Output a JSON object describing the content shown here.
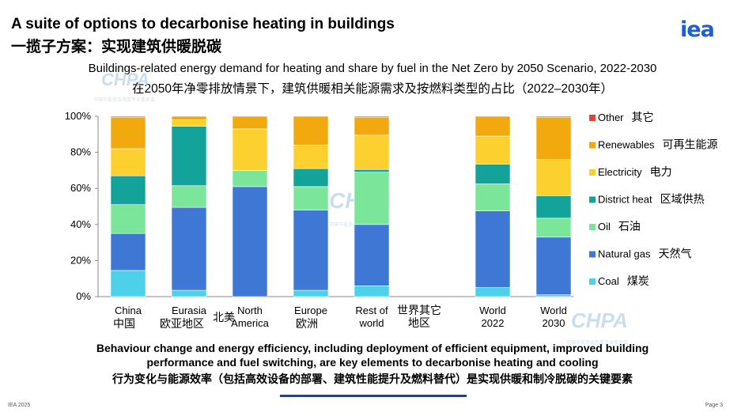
{
  "header": {
    "title_en": "A suite of options to decarbonise heating in buildings",
    "title_zh": "一揽子方案：实现建筑供暖脱碳",
    "logo": "iea"
  },
  "chart_data": {
    "type": "bar",
    "stacked": true,
    "title": "Buildings-related energy demand for heating and share by fuel in the Net Zero by 2050 Scenario, 2022-2030",
    "subtitle": "在2050年净零排放情景下，建筑供暖相关能源需求及按燃料类型的占比（2022–2030年）",
    "categories": [
      {
        "en": "China",
        "zh": "中国"
      },
      {
        "en": "Eurasia",
        "zh": "欧亚地区"
      },
      {
        "en": "North America",
        "zh": "北美"
      },
      {
        "en": "Europe",
        "zh": "欧洲"
      },
      {
        "en": "Rest of world",
        "zh": "世界其它地区"
      },
      {
        "en": "World 2022",
        "zh": ""
      },
      {
        "en": "World 2030",
        "zh": ""
      }
    ],
    "y_ticks": [
      "0%",
      "20%",
      "40%",
      "60%",
      "80%",
      "100%"
    ],
    "ylim": [
      0,
      100
    ],
    "legend_position": "right",
    "series": [
      {
        "name": "Coal",
        "name_zh": "煤炭",
        "color": "#4dd0ea",
        "values": [
          14.5,
          3.5,
          0,
          3.5,
          6,
          5,
          1
        ]
      },
      {
        "name": "Natural gas",
        "name_zh": "天然气",
        "color": "#3f78d4",
        "values": [
          20.5,
          46,
          61,
          44.5,
          34,
          42.5,
          32
        ]
      },
      {
        "name": "Oil",
        "name_zh": "石油",
        "color": "#7be69a",
        "values": [
          16,
          12,
          9,
          13,
          29,
          15,
          10.5
        ]
      },
      {
        "name": "District heat",
        "name_zh": "区域供热",
        "color": "#14a39a",
        "values": [
          16,
          33,
          0,
          10,
          1.5,
          11,
          12.5
        ]
      },
      {
        "name": "Electricity",
        "name_zh": "电力",
        "color": "#fcd02f",
        "values": [
          15,
          3.5,
          23,
          13,
          19,
          15.5,
          20
        ]
      },
      {
        "name": "Renewables",
        "name_zh": "可再生能源",
        "color": "#f2a90d",
        "values": [
          17.5,
          2,
          7,
          16,
          10,
          11,
          23.5
        ]
      },
      {
        "name": "Other",
        "name_zh": "其它",
        "color": "#d94832",
        "values": [
          0.5,
          0,
          0,
          0,
          0.5,
          0,
          0.5
        ]
      }
    ]
  },
  "watermark": {
    "text": "CHPA",
    "subtext": "中国节能协会热泵专业委员会"
  },
  "summary": {
    "en_line1": "Behaviour change and energy efficiency, including deployment of efficient equipment, improved building",
    "en_line2": "performance and fuel switching, are key elements to decarbonise heating and cooling",
    "zh": "行为变化与能源效率（包括高效设备的部署、建筑性能提升及燃料替代）是实现供暖和制冷脱碳的关键要素"
  },
  "footer": {
    "left": "IEA 2025",
    "right": "Page 3"
  }
}
